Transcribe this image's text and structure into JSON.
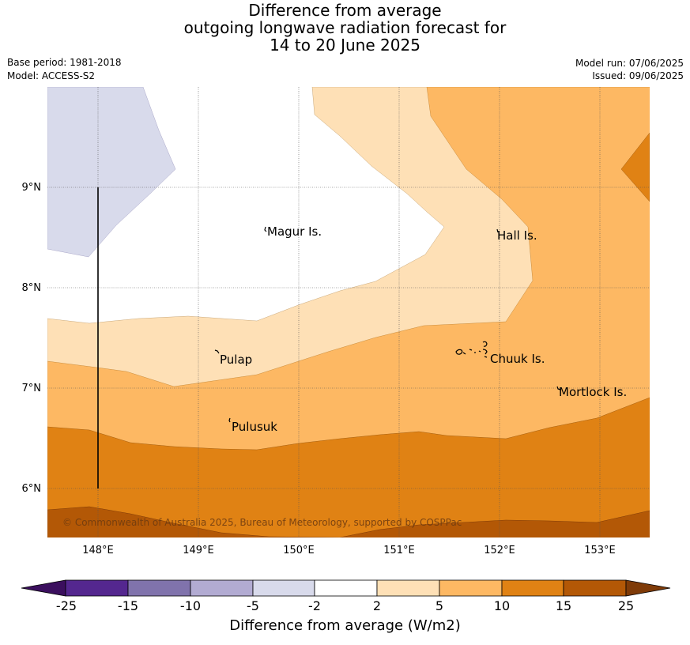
{
  "title": {
    "line1": "Difference from average",
    "line2": "outgoing longwave radiation forecast for",
    "line3": "14 to 20 June 2025"
  },
  "meta": {
    "base_period": "Base period: 1981-2018",
    "model": "Model: ACCESS-S2",
    "model_run": "Model run: 07/06/2025",
    "issued": "Issued: 09/06/2025"
  },
  "map": {
    "lon_labels": [
      "148°E",
      "149°E",
      "150°E",
      "151°E",
      "152°E",
      "153°E"
    ],
    "lat_labels": [
      "9°N",
      "8°N",
      "7°N",
      "6°N"
    ],
    "places": {
      "magur": "Magur Is.",
      "hall": "Hall Is.",
      "pulap": "Pulap",
      "chuuk": "Chuuk Is.",
      "mortlock": "Mortlock Is.",
      "pulusuk": "Pulusuk"
    },
    "copyright": "© Commonwealth of Australia 2025, Bureau of Meteorology, supported by COSPPac"
  },
  "colorbar": {
    "title": "Difference from average (W/m2)",
    "ticks": [
      "-25",
      "-15",
      "-10",
      "-5",
      "-2",
      "2",
      "5",
      "10",
      "15",
      "25"
    ],
    "colors": {
      "below_min": "#3b0f5e",
      "neg25_neg15": "#54278f",
      "neg15_neg10": "#8073ac",
      "neg10_neg5": "#b2abd2",
      "neg5_neg2": "#d8daeb",
      "neg2_2": "#ffffff",
      "2_5": "#fee0b6",
      "5_10": "#fdb863",
      "10_15": "#e08214",
      "15_25": "#b35806",
      "above_max": "#7f3b08"
    }
  }
}
